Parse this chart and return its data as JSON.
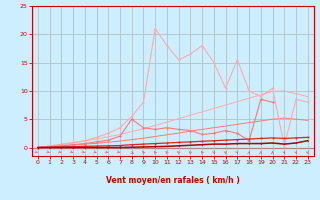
{
  "xlabel": "Vent moyen/en rafales ( km/h )",
  "xlim": [
    -0.5,
    23.5
  ],
  "ylim": [
    -1.5,
    25
  ],
  "xticks": [
    0,
    1,
    2,
    3,
    4,
    5,
    6,
    7,
    8,
    9,
    10,
    11,
    12,
    13,
    14,
    15,
    16,
    17,
    18,
    19,
    20,
    21,
    22,
    23
  ],
  "yticks": [
    0,
    5,
    10,
    15,
    20,
    25
  ],
  "bg_color": "#cceeff",
  "grid_color": "#aabbbb",
  "x": [
    0,
    1,
    2,
    3,
    4,
    5,
    6,
    7,
    8,
    9,
    10,
    11,
    12,
    13,
    14,
    15,
    16,
    17,
    18,
    19,
    20,
    21,
    22,
    23
  ],
  "y_rafales_light": [
    0,
    0.2,
    0.5,
    0.8,
    1.2,
    1.8,
    2.5,
    3.5,
    5.5,
    8.0,
    21.0,
    18.0,
    15.5,
    16.5,
    18.0,
    15.0,
    10.5,
    15.5,
    10.0,
    9.0,
    10.5,
    0.3,
    8.5,
    8.0
  ],
  "y_moyen_med": [
    0,
    0.1,
    0.3,
    0.5,
    0.7,
    1.0,
    1.3,
    2.0,
    5.0,
    3.5,
    3.2,
    3.5,
    3.2,
    3.0,
    2.3,
    2.5,
    3.0,
    2.5,
    1.2,
    8.5,
    8.0,
    0,
    0,
    0
  ],
  "y_linear_light": [
    0,
    0.3,
    0.6,
    0.9,
    1.2,
    1.5,
    1.9,
    2.3,
    2.8,
    3.3,
    3.9,
    4.5,
    5.1,
    5.7,
    6.3,
    6.9,
    7.5,
    8.1,
    8.7,
    9.3,
    9.9,
    10.0,
    9.5,
    9.0
  ],
  "y_linear_med": [
    0,
    0.15,
    0.3,
    0.45,
    0.6,
    0.75,
    0.95,
    1.15,
    1.4,
    1.65,
    1.95,
    2.25,
    2.55,
    2.9,
    3.2,
    3.5,
    3.8,
    4.1,
    4.4,
    4.7,
    5.0,
    5.2,
    5.0,
    4.8
  ],
  "y_dark_line": [
    0,
    0.05,
    0.1,
    0.15,
    0.2,
    0.25,
    0.3,
    0.35,
    0.5,
    0.6,
    0.7,
    0.8,
    0.9,
    1.0,
    1.1,
    1.2,
    1.3,
    1.4,
    1.5,
    1.6,
    1.7,
    1.6,
    1.7,
    1.8
  ],
  "y_darkest": [
    0,
    0,
    0,
    0,
    0,
    0,
    0,
    0,
    0.05,
    0.1,
    0.15,
    0.2,
    0.3,
    0.4,
    0.5,
    0.6,
    0.6,
    0.7,
    0.7,
    0.7,
    0.8,
    0.6,
    0.8,
    1.2
  ],
  "arrow_angles_deg": [
    60,
    60,
    60,
    60,
    60,
    60,
    60,
    60,
    45,
    200,
    200,
    210,
    210,
    210,
    200,
    10,
    10,
    10,
    175,
    175,
    175,
    10,
    10,
    10
  ]
}
